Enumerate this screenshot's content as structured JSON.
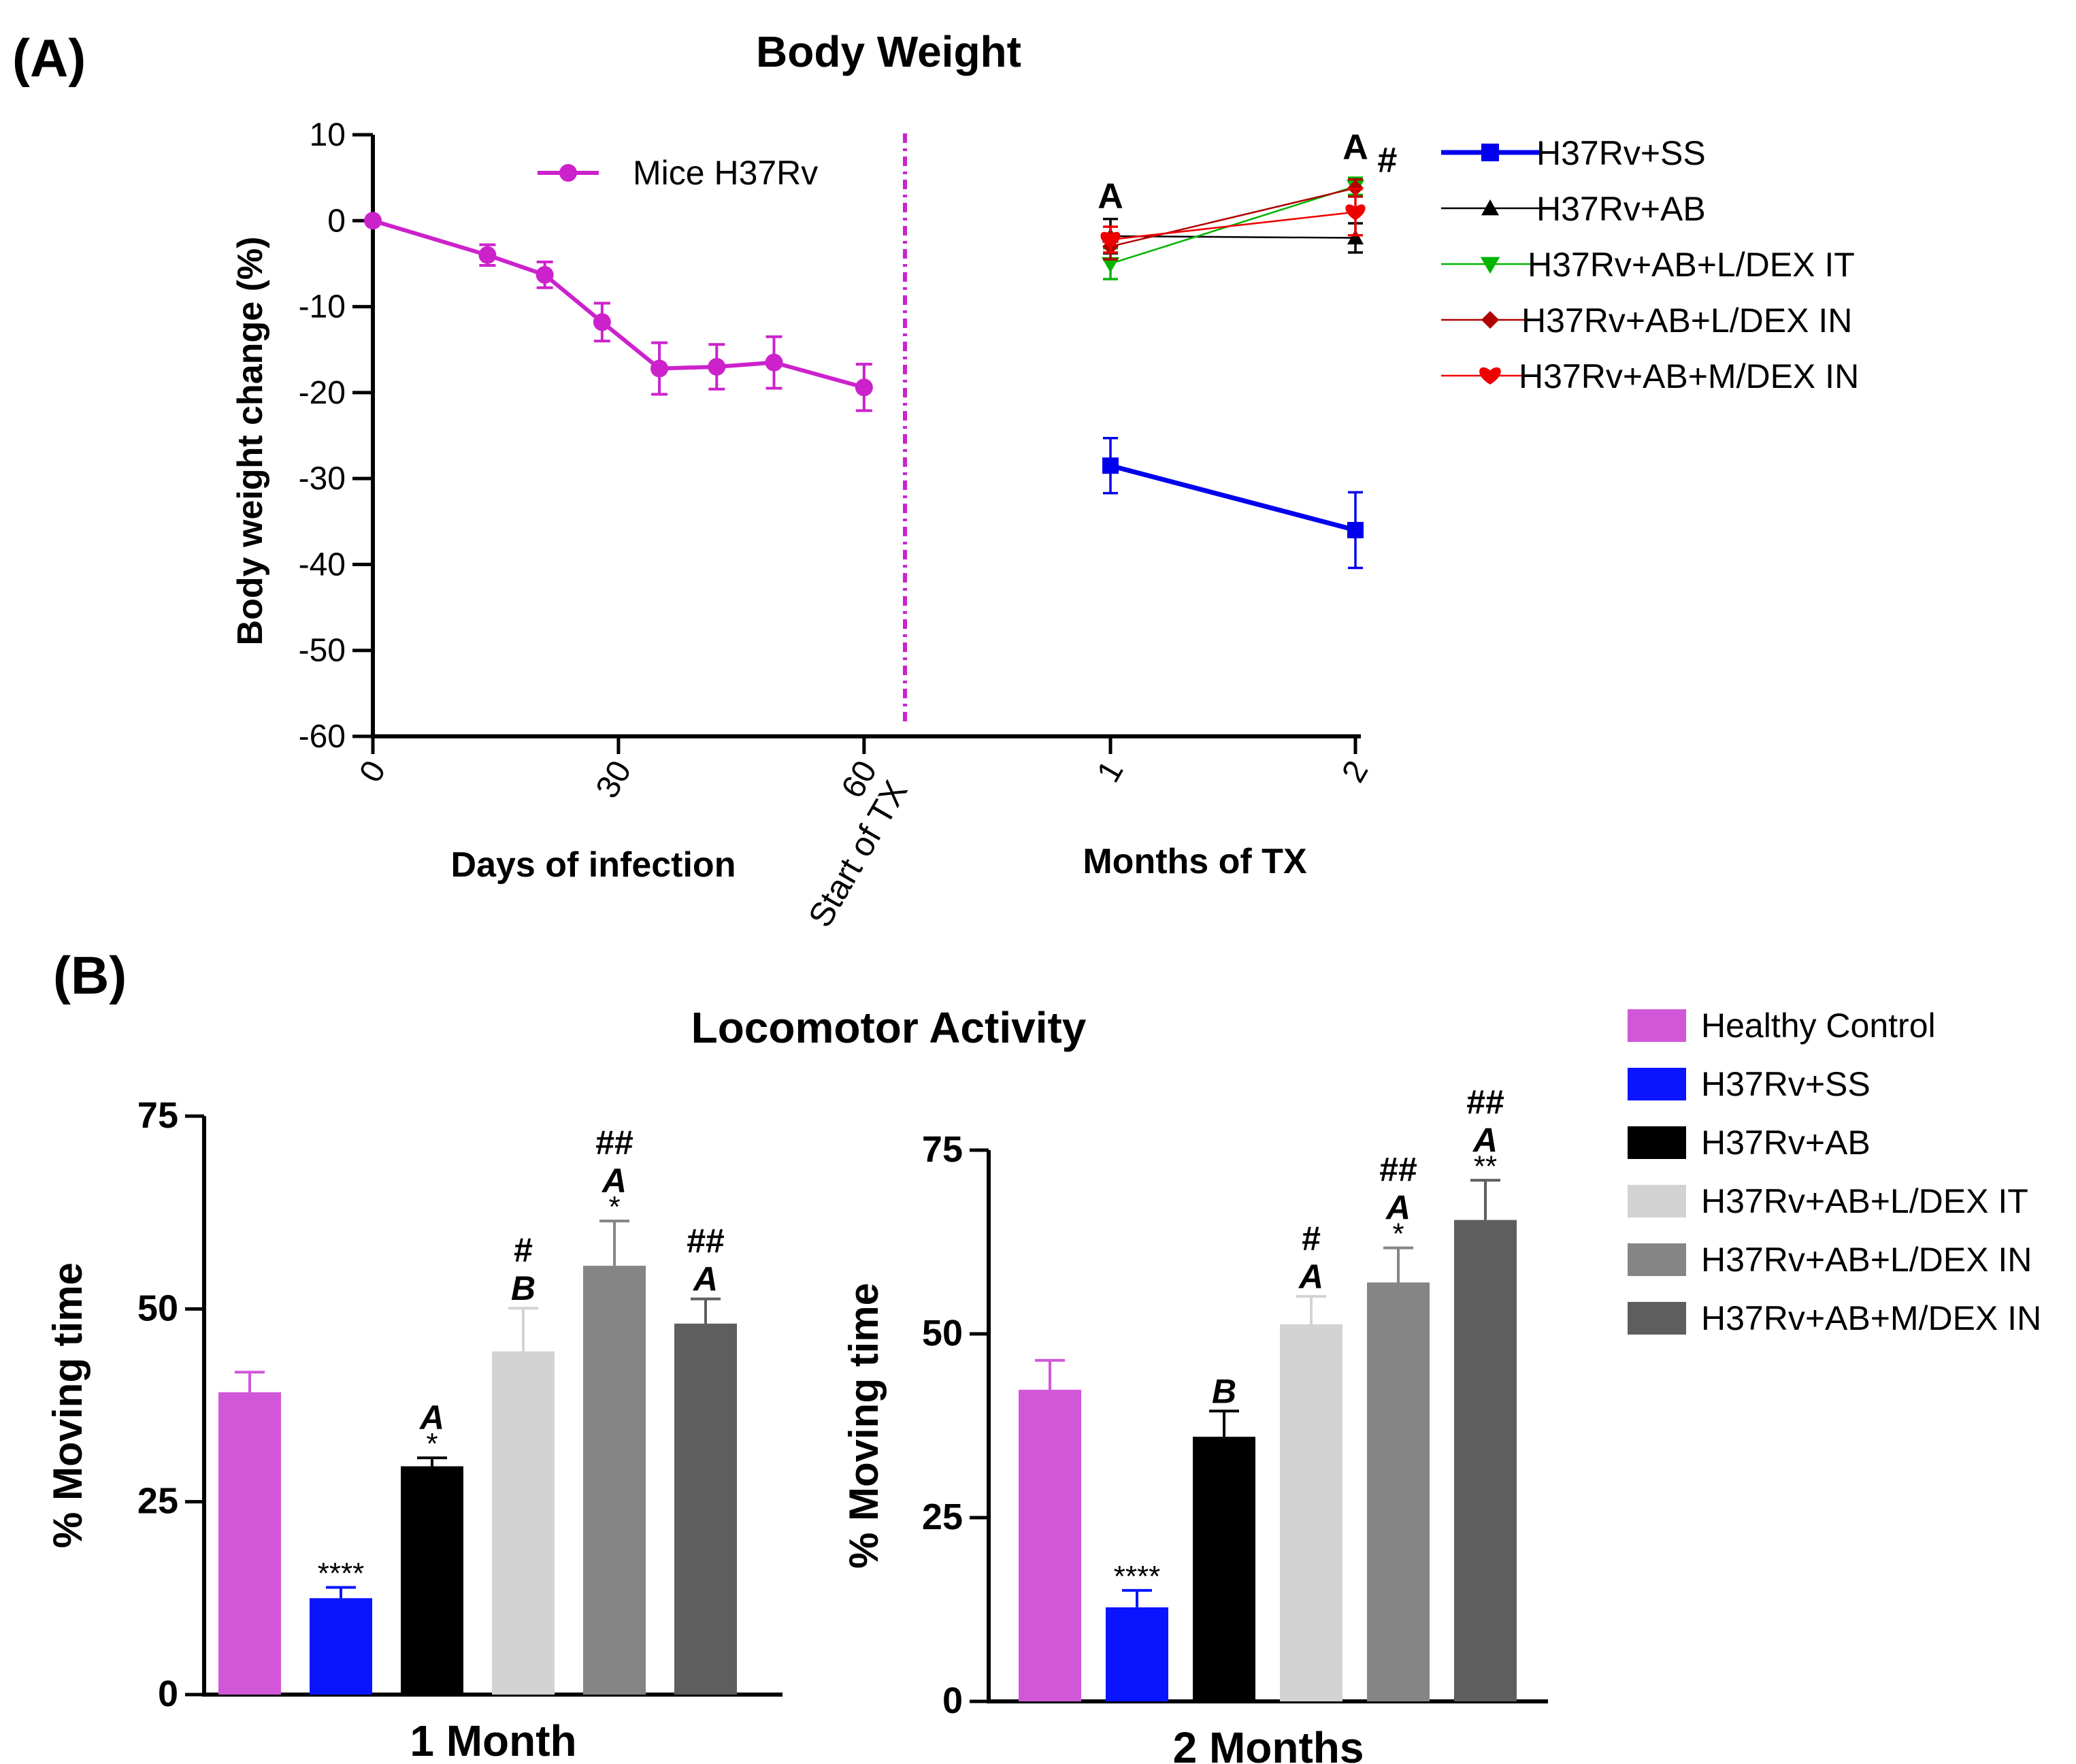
{
  "panel_a": {
    "label": "(A)"
  },
  "panel_b": {
    "label": "(B)"
  },
  "colors": {
    "magenta": "#cc22cc",
    "blue": "#0000ee",
    "black": "#000000",
    "green": "#00b400",
    "darkred": "#b00000",
    "red": "#ee0000",
    "bar_magenta": "#d058d8",
    "bar_blue": "#0a14ff",
    "bar_black": "#000000",
    "bar_light": "#d3d3d3",
    "bar_mid": "#858585",
    "bar_dark": "#5e5e5e"
  },
  "chart_data": [
    {
      "type": "line",
      "title": "Body Weight",
      "ylabel": "Body weight change (%)",
      "ylim": [
        -60,
        10
      ],
      "yticks": [
        10,
        0,
        -10,
        -20,
        -30,
        -40,
        -50,
        -60
      ],
      "infection": {
        "xlabel": "Days of infection",
        "xlim": [
          0,
          65
        ],
        "xticks": [
          "0",
          "30",
          "60"
        ],
        "xtick_values": [
          0,
          30,
          60
        ],
        "treatment_marker": {
          "label": "Start of TX",
          "x": 65
        },
        "series": [
          {
            "name": "Mice H37Rv",
            "color": "#cc22cc",
            "marker": "circle",
            "x": [
              0,
              14,
              21,
              28,
              35,
              42,
              49,
              60
            ],
            "y": [
              0,
              -4,
              -6.3,
              -11.8,
              -17.2,
              -17,
              -16.5,
              -19.4
            ],
            "err": [
              0,
              1.2,
              1.5,
              2.2,
              3,
              2.6,
              3,
              2.7
            ]
          }
        ]
      },
      "treatment": {
        "xlabel": "Months of TX",
        "xticks": [
          "1",
          "2"
        ],
        "xtick_values": [
          1,
          2
        ],
        "series": [
          {
            "name": "H37Rv+SS",
            "color": "#0000ee",
            "marker": "square",
            "x": [
              1,
              2
            ],
            "y": [
              -28.5,
              -36
            ],
            "err": [
              3.2,
              4.4
            ]
          },
          {
            "name": "H37Rv+AB",
            "color": "#000000",
            "marker": "triangle",
            "x": [
              1,
              2
            ],
            "y": [
              -1.8,
              -2
            ],
            "err": [
              2,
              1.7
            ]
          },
          {
            "name": "H37Rv+AB+L/DEX IT",
            "color": "#00b400",
            "marker": "triangle-down",
            "x": [
              1,
              2
            ],
            "y": [
              -5,
              4
            ],
            "err": [
              1.8,
              1
            ]
          },
          {
            "name": "H37Rv+AB+L/DEX IN",
            "color": "#b00000",
            "marker": "diamond",
            "x": [
              1,
              2
            ],
            "y": [
              -3,
              3.8
            ],
            "err": [
              1.5,
              1
            ]
          },
          {
            "name": "H37Rv+AB+M/DEX IN",
            "color": "#ee0000",
            "marker": "heart",
            "x": [
              1,
              2
            ],
            "y": [
              -2.2,
              1
            ],
            "err": [
              1.5,
              2.7
            ]
          }
        ],
        "annotations": [
          {
            "text": "A",
            "x": 1,
            "y": 1.5
          },
          {
            "text": "A",
            "x": 2,
            "y": 7.2
          },
          {
            "text": "#",
            "x": 2.13,
            "y": 5.7
          }
        ]
      }
    },
    {
      "type": "bar",
      "title": "Locomotor Activity",
      "xlabel": "1 Month",
      "ylabel": "% Moving time",
      "ylim": [
        0,
        75
      ],
      "yticks": [
        0,
        25,
        50,
        75
      ],
      "categories": [
        "Healthy Control",
        "H37Rv+SS",
        "H37Rv+AB",
        "H37Rv+AB+L/DEX IT",
        "H37Rv+AB+L/DEX IN",
        "H37Rv+AB+M/DEX IN"
      ],
      "values": [
        39.2,
        12.5,
        29.6,
        44.5,
        55.6,
        48.1
      ],
      "errors": [
        2.6,
        1.4,
        1.1,
        5.6,
        5.8,
        3.2
      ],
      "annotations": [
        [],
        [
          "****"
        ],
        [
          "*",
          "A"
        ],
        [
          "B",
          "#"
        ],
        [
          "*",
          "A",
          "##"
        ],
        [
          "A",
          "##"
        ]
      ]
    },
    {
      "type": "bar",
      "title": "",
      "xlabel": "2 Months",
      "ylabel": "% Moving time",
      "ylim": [
        0,
        75
      ],
      "yticks": [
        0,
        25,
        50,
        75
      ],
      "categories": [
        "Healthy Control",
        "H37Rv+SS",
        "H37Rv+AB",
        "H37Rv+AB+L/DEX IT",
        "H37Rv+AB+L/DEX IN",
        "H37Rv+AB+M/DEX IN"
      ],
      "values": [
        42.4,
        12.8,
        36,
        51.3,
        57,
        65.5
      ],
      "errors": [
        4,
        2.3,
        3.5,
        3.8,
        4.7,
        5.4
      ],
      "annotations": [
        [],
        [
          "****"
        ],
        [
          "B"
        ],
        [
          "A",
          "#"
        ],
        [
          "*",
          "A",
          "##"
        ],
        [
          "**",
          "A",
          "##"
        ]
      ]
    }
  ],
  "bar_legend": [
    {
      "label": "Healthy Control",
      "color": "#d058d8"
    },
    {
      "label": "H37Rv+SS",
      "color": "#0a14ff"
    },
    {
      "label": "H37Rv+AB",
      "color": "#000000"
    },
    {
      "label": "H37Rv+AB+L/DEX IT",
      "color": "#d3d3d3"
    },
    {
      "label": "H37Rv+AB+L/DEX IN",
      "color": "#858585"
    },
    {
      "label": "H37Rv+AB+M/DEX IN",
      "color": "#5e5e5e"
    }
  ]
}
